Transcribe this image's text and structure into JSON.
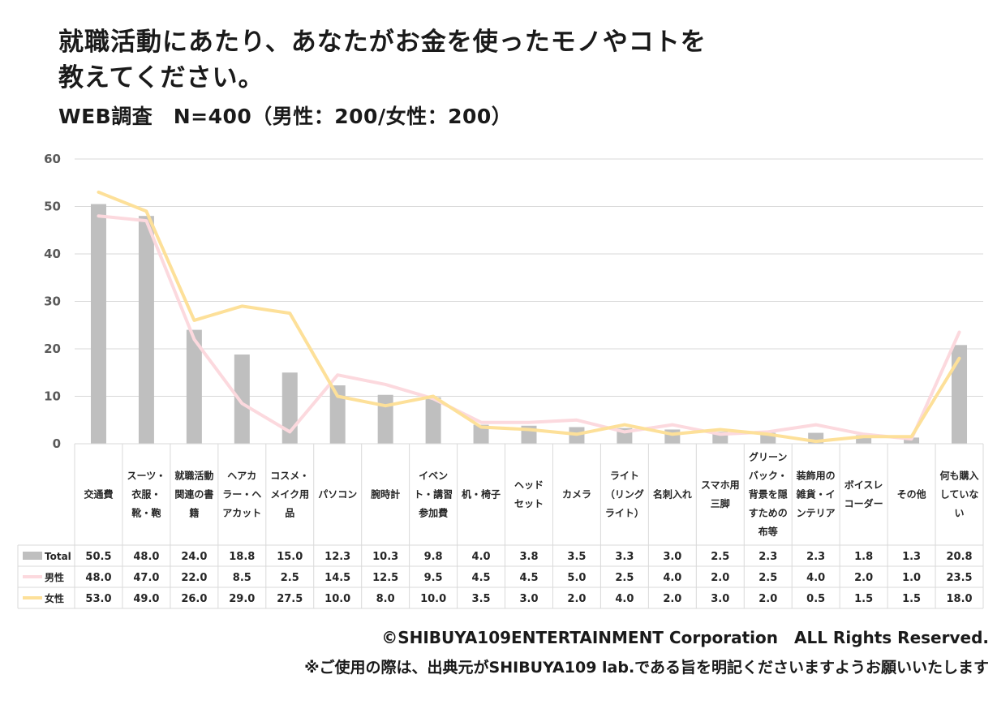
{
  "title_line1": "就職活動にあたり、あなたがお金を使ったモノやコトを",
  "title_line2": "教えてください。",
  "subtitle": "WEB調査　N=400（男性：200/女性：200）",
  "footer_copyright": "©SHIBUYA109ENTERTAINMENT Corporation　ALL Rights Reserved.",
  "footer_notice": "※ご使用の際は、出典元がSHIBUYA109 lab.である旨を明記くださいますようお願いいたします",
  "colors": {
    "total": "#bfbfbf",
    "male": "#fcd9de",
    "female": "#fde099",
    "grid": "#d9d9d9"
  },
  "chart_data": {
    "type": "bar",
    "ylim": [
      0,
      60
    ],
    "yticks": [
      0,
      10,
      20,
      30,
      40,
      50,
      60
    ],
    "categories": [
      [
        "交通費"
      ],
      [
        "スーツ・",
        "衣服・",
        "靴・鞄"
      ],
      [
        "就職活動",
        "関連の書",
        "籍"
      ],
      [
        "ヘアカ",
        "ラー・ヘ",
        "アカット"
      ],
      [
        "コスメ・",
        "メイク用",
        "品"
      ],
      [
        "パソコン"
      ],
      [
        "腕時計"
      ],
      [
        "イベン",
        "ト・講習",
        "参加費"
      ],
      [
        "机・椅子"
      ],
      [
        "ヘッド",
        "セット"
      ],
      [
        "カメラ"
      ],
      [
        "ライト",
        "（リング",
        "ライト）"
      ],
      [
        "名刺入れ"
      ],
      [
        "スマホ用",
        "三脚"
      ],
      [
        "グリーン",
        "バック・",
        "背景を隠",
        "すための",
        "布等"
      ],
      [
        "装飾用の",
        "雑貨・イ",
        "ンテリア"
      ],
      [
        "ボイスレ",
        "コーダー"
      ],
      [
        "その他"
      ],
      [
        "何も購入",
        "していな",
        "い"
      ]
    ],
    "series": [
      {
        "name": "Total",
        "type": "bar",
        "values": [
          50.5,
          48.0,
          24.0,
          18.8,
          15.0,
          12.3,
          10.3,
          9.8,
          4.0,
          3.8,
          3.5,
          3.3,
          3.0,
          2.5,
          2.3,
          2.3,
          1.8,
          1.3,
          20.8
        ]
      },
      {
        "name": "男性",
        "type": "line",
        "values": [
          48.0,
          47.0,
          22.0,
          8.5,
          2.5,
          14.5,
          12.5,
          9.5,
          4.5,
          4.5,
          5.0,
          2.5,
          4.0,
          2.0,
          2.5,
          4.0,
          2.0,
          1.0,
          23.5
        ]
      },
      {
        "name": "女性",
        "type": "line",
        "values": [
          53.0,
          49.0,
          26.0,
          29.0,
          27.5,
          10.0,
          8.0,
          10.0,
          3.5,
          3.0,
          2.0,
          4.0,
          2.0,
          3.0,
          2.0,
          0.5,
          1.5,
          1.5,
          18.0
        ]
      }
    ]
  }
}
